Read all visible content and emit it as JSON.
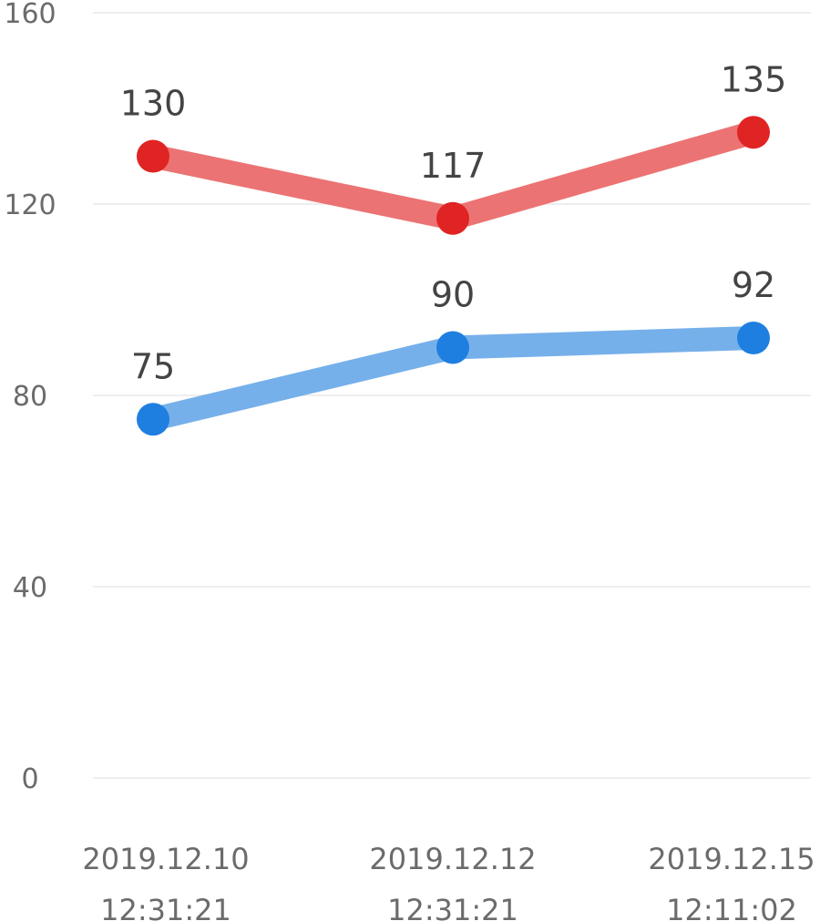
{
  "chart_data": {
    "type": "line",
    "title": "",
    "xlabel": "",
    "ylabel": "",
    "ylim": [
      0,
      160
    ],
    "yticks": [
      0,
      40,
      80,
      120,
      160
    ],
    "grid": true,
    "legend": "none",
    "categories": [
      [
        "2019.12.10",
        "12:31:21"
      ],
      [
        "2019.12.12",
        "12:31:21"
      ],
      [
        "2019.12.15",
        "12:11:02"
      ]
    ],
    "series": [
      {
        "values": [
          130,
          117,
          135
        ],
        "line_color": "#ec7373",
        "point_color": "#e02424"
      },
      {
        "values": [
          75,
          90,
          92
        ],
        "line_color": "#76b0ea",
        "point_color": "#1f7fe0"
      }
    ]
  }
}
